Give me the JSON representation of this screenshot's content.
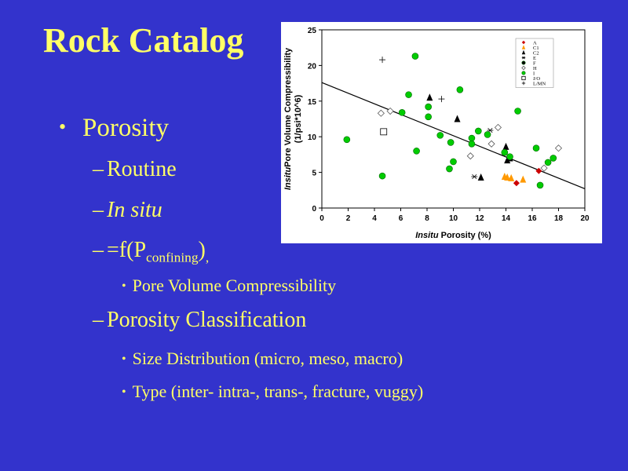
{
  "slide": {
    "title": "Rock Catalog",
    "bullet1": "Porosity",
    "sub_routine": "Routine",
    "sub_insitu": "In situ",
    "sub_f_prefix": "=f(P",
    "sub_f_subscript": "confining",
    "sub_f_suffix": ")",
    "sub_f_comma": ",",
    "pore_volume": "Pore Volume Compressibility",
    "sub_classification": "Porosity Classification",
    "size_dist": "Size Distribution (micro, meso, macro)",
    "type_list": "Type (inter- intra-, trans-, fracture, vuggy)",
    "dash": "–",
    "bullet_char": "•",
    "text_color": "#ffff66",
    "bg_color": "#3333cc"
  },
  "chart_data": {
    "type": "scatter",
    "xlabel_italic": "Insitu",
    "xlabel_rest": " Porosity (%)",
    "ylabel_line1_italic": "Insitu",
    "ylabel_line1_rest": "Pore Volume Compressibility",
    "ylabel_line2": "(1/psi*10^6)",
    "xlim": [
      0,
      20
    ],
    "ylim": [
      0,
      25
    ],
    "xticks": [
      "0",
      "2",
      "4",
      "6",
      "8",
      "10",
      "12",
      "14",
      "16",
      "18",
      "20"
    ],
    "yticks": [
      "0",
      "5",
      "10",
      "15",
      "20",
      "25"
    ],
    "legend_position": "top-right",
    "trendline": {
      "x": [
        0,
        20
      ],
      "y": [
        17.6,
        2.7
      ]
    },
    "series": [
      {
        "name": "A",
        "marker": "diamond-filled",
        "color": "#cc0000",
        "points": [
          [
            14.8,
            3.5
          ],
          [
            16.5,
            5.2
          ]
        ]
      },
      {
        "name": "C1",
        "marker": "triangle-filled",
        "color": "#ff9900",
        "points": [
          [
            13.9,
            4.4
          ],
          [
            14.1,
            4.3
          ],
          [
            14.4,
            4.2
          ],
          [
            15.3,
            4.0
          ]
        ]
      },
      {
        "name": "C2",
        "marker": "triangle-filled",
        "color": "#000000",
        "points": [
          [
            8.2,
            15.5
          ],
          [
            10.3,
            12.5
          ],
          [
            14.0,
            8.6
          ],
          [
            14.1,
            6.7
          ],
          [
            14.3,
            7.0
          ],
          [
            12.1,
            4.3
          ]
        ]
      },
      {
        "name": "E",
        "marker": "asterisk",
        "color": "#000000",
        "points": [
          [
            11.6,
            4.4
          ],
          [
            12.8,
            10.9
          ]
        ]
      },
      {
        "name": "F",
        "marker": "circle-filled",
        "color": "#000000",
        "points": []
      },
      {
        "name": "H",
        "marker": "diamond-open",
        "color": "#000000",
        "points": [
          [
            4.5,
            13.3
          ],
          [
            5.2,
            13.6
          ],
          [
            11.3,
            7.3
          ],
          [
            12.9,
            9.0
          ],
          [
            13.4,
            11.3
          ],
          [
            16.9,
            5.6
          ],
          [
            18.0,
            8.4
          ]
        ]
      },
      {
        "name": "I",
        "marker": "circle-filled",
        "color": "#00cc00",
        "points": [
          [
            1.9,
            9.6
          ],
          [
            4.6,
            4.5
          ],
          [
            6.1,
            13.4
          ],
          [
            6.6,
            15.9
          ],
          [
            7.1,
            21.3
          ],
          [
            7.2,
            8.0
          ],
          [
            8.1,
            14.2
          ],
          [
            8.1,
            12.8
          ],
          [
            9.0,
            10.2
          ],
          [
            9.7,
            5.5
          ],
          [
            9.8,
            9.2
          ],
          [
            10.0,
            6.5
          ],
          [
            10.5,
            16.6
          ],
          [
            11.4,
            9.8
          ],
          [
            11.4,
            9.0
          ],
          [
            11.9,
            10.8
          ],
          [
            12.6,
            10.3
          ],
          [
            13.9,
            7.8
          ],
          [
            14.3,
            7.2
          ],
          [
            14.9,
            13.6
          ],
          [
            16.3,
            8.4
          ],
          [
            16.6,
            3.2
          ],
          [
            17.2,
            6.4
          ],
          [
            17.6,
            7.0
          ]
        ]
      },
      {
        "name": "J/O",
        "marker": "square-open",
        "color": "#000000",
        "points": [
          [
            4.7,
            10.7
          ]
        ]
      },
      {
        "name": "L/MN",
        "marker": "plus",
        "color": "#000000",
        "points": [
          [
            4.6,
            20.8
          ],
          [
            9.1,
            15.3
          ]
        ]
      }
    ]
  }
}
